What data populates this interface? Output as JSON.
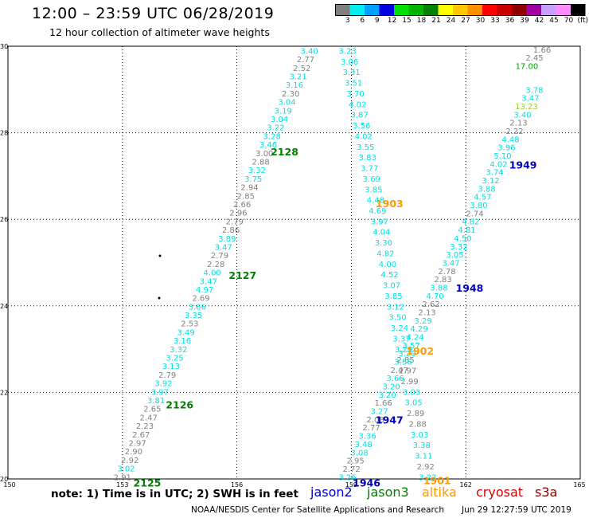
{
  "header": {
    "title": "12:00 – 23:59 UTC 06/28/2019",
    "subtitle": "12 hour collection of altimeter wave heights"
  },
  "colorbar": {
    "unit_label": "(ft)",
    "swatches": [
      {
        "label": "3",
        "color": "#808080"
      },
      {
        "label": "6",
        "color": "#00f0f0"
      },
      {
        "label": "9",
        "color": "#00a0ff"
      },
      {
        "label": "12",
        "color": "#0000e0"
      },
      {
        "label": "15",
        "color": "#00e000"
      },
      {
        "label": "18",
        "color": "#00b400"
      },
      {
        "label": "21",
        "color": "#008000"
      },
      {
        "label": "24",
        "color": "#ffff00"
      },
      {
        "label": "27",
        "color": "#ffc800"
      },
      {
        "label": "30",
        "color": "#ff9000"
      },
      {
        "label": "33",
        "color": "#ff0000"
      },
      {
        "label": "36",
        "color": "#c80000"
      },
      {
        "label": "39",
        "color": "#900000"
      },
      {
        "label": "42",
        "color": "#a000a0"
      },
      {
        "label": "45",
        "color": "#c8a0ff"
      },
      {
        "label": "70",
        "color": "#ff8cff"
      },
      {
        "label": "",
        "color": "#000000"
      }
    ]
  },
  "map": {
    "x_ticks": [
      "150",
      "153",
      "156",
      "159",
      "162",
      "165"
    ],
    "y_ticks": [
      "20",
      "22",
      "24",
      "26",
      "28",
      "30"
    ],
    "lon_range": [
      150,
      165
    ],
    "lat_range": [
      20,
      30
    ],
    "tracks": [
      {
        "start": [
          153.0,
          20.05
        ],
        "end": [
          157.9,
          29.9
        ],
        "labels": [
          {
            "v": "2.91",
            "c": "#808080"
          },
          {
            "v": "3.02",
            "c": "#00e0e0"
          },
          {
            "v": "2.92",
            "c": "#808080"
          },
          {
            "v": "2.90",
            "c": "#808080"
          },
          {
            "v": "2.97",
            "c": "#808080"
          },
          {
            "v": "2.67",
            "c": "#808080"
          },
          {
            "v": "2.23",
            "c": "#808080"
          },
          {
            "v": "2.47",
            "c": "#808080"
          },
          {
            "v": "2.65",
            "c": "#808080"
          },
          {
            "v": "3.81",
            "c": "#00e0e0"
          },
          {
            "v": "3.97",
            "c": "#00e0e0"
          },
          {
            "v": "3.92",
            "c": "#00e0e0"
          },
          {
            "v": "2.79",
            "c": "#808080"
          },
          {
            "v": "3.13",
            "c": "#00e0e0"
          },
          {
            "v": "3.25",
            "c": "#00e0e0"
          },
          {
            "v": "3.32",
            "c": "#00e0e0"
          },
          {
            "v": "3.16",
            "c": "#00e0e0"
          },
          {
            "v": "3.49",
            "c": "#00e0e0"
          },
          {
            "v": "2.53",
            "c": "#808080"
          },
          {
            "v": "3.35",
            "c": "#00e0e0"
          },
          {
            "v": "3.66",
            "c": "#00e0e0"
          },
          {
            "v": "2.69",
            "c": "#808080"
          },
          {
            "v": "4.97",
            "c": "#00e0e0"
          },
          {
            "v": "3.47",
            "c": "#00e0e0"
          },
          {
            "v": "4.00",
            "c": "#00e0e0"
          },
          {
            "v": "2.28",
            "c": "#808080"
          },
          {
            "v": "2.79",
            "c": "#808080"
          },
          {
            "v": "3.47",
            "c": "#00e0e0"
          },
          {
            "v": "3.89",
            "c": "#00e0e0"
          },
          {
            "v": "2.86",
            "c": "#808080"
          },
          {
            "v": "2.79",
            "c": "#808080"
          },
          {
            "v": "2.96",
            "c": "#808080"
          },
          {
            "v": "2.66",
            "c": "#808080"
          },
          {
            "v": "2.85",
            "c": "#808080"
          },
          {
            "v": "2.94",
            "c": "#808080"
          },
          {
            "v": "3.75",
            "c": "#00e0e0"
          },
          {
            "v": "3.32",
            "c": "#00e0e0"
          },
          {
            "v": "2.88",
            "c": "#808080"
          },
          {
            "v": "3.00",
            "c": "#808080"
          },
          {
            "v": "3.46",
            "c": "#00e0e0"
          },
          {
            "v": "3.28",
            "c": "#00e0e0"
          },
          {
            "v": "3.22",
            "c": "#00e0e0"
          },
          {
            "v": "3.04",
            "c": "#00e0e0"
          },
          {
            "v": "3.19",
            "c": "#00e0e0"
          },
          {
            "v": "3.04",
            "c": "#00e0e0"
          },
          {
            "v": "2.30",
            "c": "#808080"
          },
          {
            "v": "3.16",
            "c": "#00e0e0"
          },
          {
            "v": "3.21",
            "c": "#00e0e0"
          },
          {
            "v": "2.52",
            "c": "#808080"
          },
          {
            "v": "2.77",
            "c": "#808080"
          },
          {
            "v": "3.40",
            "c": "#00e0e0"
          }
        ]
      },
      {
        "start": [
          158.9,
          29.9
        ],
        "end": [
          161.0,
          20.05
        ],
        "labels": [
          {
            "v": "3.23",
            "c": "#00e0e0"
          },
          {
            "v": "3.06",
            "c": "#00e0e0"
          },
          {
            "v": "3.31",
            "c": "#00e0e0"
          },
          {
            "v": "3.51",
            "c": "#00e0e0"
          },
          {
            "v": "3.70",
            "c": "#00e0e0"
          },
          {
            "v": "4.02",
            "c": "#00e0e0"
          },
          {
            "v": "3.87",
            "c": "#00e0e0"
          },
          {
            "v": "3.56",
            "c": "#00e0e0"
          },
          {
            "v": "4.02",
            "c": "#00e0e0"
          },
          {
            "v": "3.55",
            "c": "#00e0e0"
          },
          {
            "v": "3.83",
            "c": "#00e0e0"
          },
          {
            "v": "3.77",
            "c": "#00e0e0"
          },
          {
            "v": "3.69",
            "c": "#00e0e0"
          },
          {
            "v": "3.85",
            "c": "#00e0e0"
          },
          {
            "v": "4.48",
            "c": "#00e0e0"
          },
          {
            "v": "4.69",
            "c": "#00e0e0"
          },
          {
            "v": "3.97",
            "c": "#00e0e0"
          },
          {
            "v": "4.04",
            "c": "#00e0e0"
          },
          {
            "v": "3.30",
            "c": "#00e0e0"
          },
          {
            "v": "4.82",
            "c": "#00e0e0"
          },
          {
            "v": "4.00",
            "c": "#00e0e0"
          },
          {
            "v": "4.52",
            "c": "#00e0e0"
          },
          {
            "v": "3.07",
            "c": "#00e0e0"
          },
          {
            "v": "3.85",
            "c": "#00e0e0"
          },
          {
            "v": "3.12",
            "c": "#00e0e0"
          },
          {
            "v": "3.50",
            "c": "#00e0e0"
          },
          {
            "v": "3.24",
            "c": "#00e0e0"
          },
          {
            "v": "3.37",
            "c": "#00e0e0"
          },
          {
            "v": "3.29",
            "c": "#00e0e0"
          },
          {
            "v": "2.85",
            "c": "#808080"
          },
          {
            "v": "2.97",
            "c": "#808080"
          },
          {
            "v": "2.99",
            "c": "#808080"
          },
          {
            "v": "3.03",
            "c": "#00e0e0"
          },
          {
            "v": "3.05",
            "c": "#00e0e0"
          },
          {
            "v": "2.89",
            "c": "#808080"
          },
          {
            "v": "2.88",
            "c": "#808080"
          },
          {
            "v": "3.03",
            "c": "#00e0e0"
          },
          {
            "v": "3.38",
            "c": "#00e0e0"
          },
          {
            "v": "3.11",
            "c": "#00e0e0"
          },
          {
            "v": "2.92",
            "c": "#808080"
          },
          {
            "v": "3.27",
            "c": "#00e0e0"
          }
        ]
      },
      {
        "start": [
          158.9,
          20.05
        ],
        "end": [
          163.8,
          29.0
        ],
        "labels": [
          {
            "v": "3.26",
            "c": "#00e0e0"
          },
          {
            "v": "2.72",
            "c": "#808080"
          },
          {
            "v": "2.95",
            "c": "#808080"
          },
          {
            "v": "3.08",
            "c": "#00e0e0"
          },
          {
            "v": "3.48",
            "c": "#00e0e0"
          },
          {
            "v": "3.36",
            "c": "#00e0e0"
          },
          {
            "v": "2.77",
            "c": "#808080"
          },
          {
            "v": "2.08",
            "c": "#808080"
          },
          {
            "v": "3.27",
            "c": "#00e0e0"
          },
          {
            "v": "1.66",
            "c": "#808080"
          },
          {
            "v": "3.20",
            "c": "#00e0e0"
          },
          {
            "v": "3.20",
            "c": "#00e0e0"
          },
          {
            "v": "3.66",
            "c": "#00e0e0"
          },
          {
            "v": "2.47",
            "c": "#808080"
          },
          {
            "v": "3.56",
            "c": "#00e0e0"
          },
          {
            "v": "3.29",
            "c": "#00e0e0"
          },
          {
            "v": "3.57",
            "c": "#00e0e0"
          },
          {
            "v": "4.24",
            "c": "#00e0e0"
          },
          {
            "v": "4.29",
            "c": "#00e0e0"
          },
          {
            "v": "3.29",
            "c": "#00e0e0"
          },
          {
            "v": "2.13",
            "c": "#808080"
          },
          {
            "v": "2.62",
            "c": "#808080"
          },
          {
            "v": "4.70",
            "c": "#00e0e0"
          },
          {
            "v": "3.88",
            "c": "#00e0e0"
          },
          {
            "v": "2.83",
            "c": "#808080"
          },
          {
            "v": "2.78",
            "c": "#808080"
          },
          {
            "v": "3.47",
            "c": "#00e0e0"
          },
          {
            "v": "3.05",
            "c": "#00e0e0"
          },
          {
            "v": "3.32",
            "c": "#00e0e0"
          },
          {
            "v": "4.50",
            "c": "#00e0e0"
          },
          {
            "v": "4.81",
            "c": "#00e0e0"
          },
          {
            "v": "4.82",
            "c": "#00e0e0"
          },
          {
            "v": "2.74",
            "c": "#808080"
          },
          {
            "v": "3.80",
            "c": "#00e0e0"
          },
          {
            "v": "4.57",
            "c": "#00e0e0"
          },
          {
            "v": "3.88",
            "c": "#00e0e0"
          },
          {
            "v": "3.12",
            "c": "#00e0e0"
          },
          {
            "v": "3.74",
            "c": "#00e0e0"
          },
          {
            "v": "4.02",
            "c": "#00e0e0"
          },
          {
            "v": "5.10",
            "c": "#00e0e0"
          },
          {
            "v": "3.96",
            "c": "#00e0e0"
          },
          {
            "v": "4.48",
            "c": "#00e0e0"
          },
          {
            "v": "2.22",
            "c": "#808080"
          },
          {
            "v": "2.13",
            "c": "#808080"
          },
          {
            "v": "3.40",
            "c": "#00e0e0"
          },
          {
            "v": "13.23",
            "c": "#9acd32"
          },
          {
            "v": "3.47",
            "c": "#00e0e0"
          },
          {
            "v": "3.78",
            "c": "#00e0e0"
          }
        ]
      },
      {
        "start": [
          164.0,
          29.93
        ],
        "end": [
          163.6,
          29.55
        ],
        "labels": [
          {
            "v": "1.66",
            "c": "#808080"
          },
          {
            "v": "2.45",
            "c": "#808080"
          },
          {
            "v": "17.00",
            "c": "#00a000"
          }
        ]
      }
    ],
    "pass_labels": [
      {
        "text": "2128",
        "color": "#008000",
        "lon": 157.25,
        "lat": 27.55
      },
      {
        "text": "2127",
        "color": "#008000",
        "lon": 156.15,
        "lat": 24.7
      },
      {
        "text": "2126",
        "color": "#008000",
        "lon": 154.5,
        "lat": 21.7
      },
      {
        "text": "2125",
        "color": "#008000",
        "lon": 153.65,
        "lat": 19.9
      },
      {
        "text": "1903",
        "color": "#ff9900",
        "lon": 160.0,
        "lat": 26.35
      },
      {
        "text": "1902",
        "color": "#ff9900",
        "lon": 160.8,
        "lat": 22.95
      },
      {
        "text": "1901",
        "color": "#ff9900",
        "lon": 161.25,
        "lat": 19.95
      },
      {
        "text": "1949",
        "color": "#0000c0",
        "lon": 163.5,
        "lat": 27.25
      },
      {
        "text": "1948",
        "color": "#0000c0",
        "lon": 162.1,
        "lat": 24.4
      },
      {
        "text": "1947",
        "color": "#0000c0",
        "lon": 160.0,
        "lat": 21.35
      },
      {
        "text": "1946",
        "color": "#0000c0",
        "lon": 159.4,
        "lat": 19.9
      }
    ]
  },
  "footer": {
    "note": "note: 1) Time is in UTC; 2) SWH is in feet",
    "missions": [
      {
        "name": "jason2",
        "color": "#0000c8"
      },
      {
        "name": "jason3",
        "color": "#008000"
      },
      {
        "name": "altika",
        "color": "#ff9900"
      },
      {
        "name": "cryosat",
        "color": "#dd0000"
      },
      {
        "name": "s3a",
        "color": "#880000"
      }
    ],
    "credit": "NOAA/NESDIS Center for Satellite Applications and Research",
    "timestamp": "Jun 29 12:27:59 UTC 2019"
  }
}
